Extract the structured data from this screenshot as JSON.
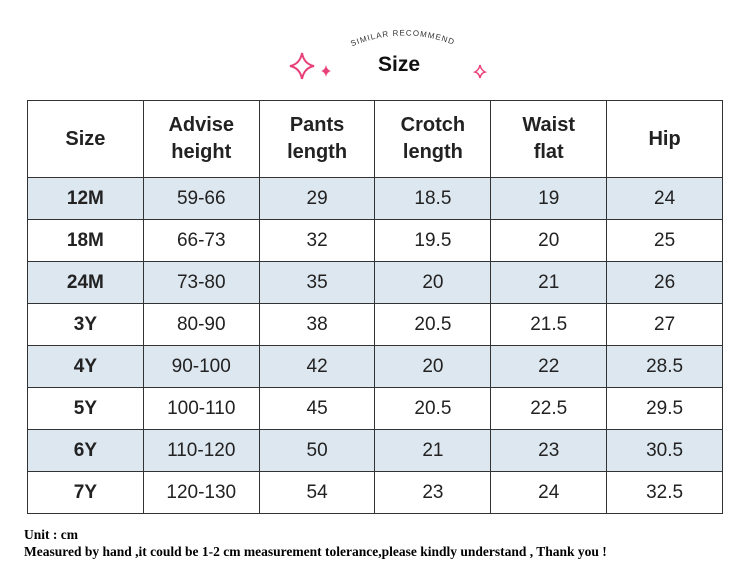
{
  "header": {
    "subtitle": "SIMILAR RECOMMEND",
    "title": "Size"
  },
  "table": {
    "columns": [
      "Size",
      "Advise\nheight",
      "Pants\nlength",
      "Crotch\nlength",
      "Waist\nflat",
      "Hip"
    ],
    "rows": [
      [
        "12M",
        "59-66",
        "29",
        "18.5",
        "19",
        "24"
      ],
      [
        "18M",
        "66-73",
        "32",
        "19.5",
        "20",
        "25"
      ],
      [
        "24M",
        "73-80",
        "35",
        "20",
        "21",
        "26"
      ],
      [
        "3Y",
        "80-90",
        "38",
        "20.5",
        "21.5",
        "27"
      ],
      [
        "4Y",
        "90-100",
        "42",
        "20",
        "22",
        "28.5"
      ],
      [
        "5Y",
        "100-110",
        "45",
        "20.5",
        "22.5",
        "29.5"
      ],
      [
        "6Y",
        "110-120",
        "50",
        "21",
        "23",
        "30.5"
      ],
      [
        "7Y",
        "120-130",
        "54",
        "23",
        "24",
        "32.5"
      ]
    ]
  },
  "footer": {
    "unit": "Unit : cm",
    "note": "Measured by hand ,it could be 1-2 cm measurement tolerance,please kindly understand , Thank you !"
  }
}
